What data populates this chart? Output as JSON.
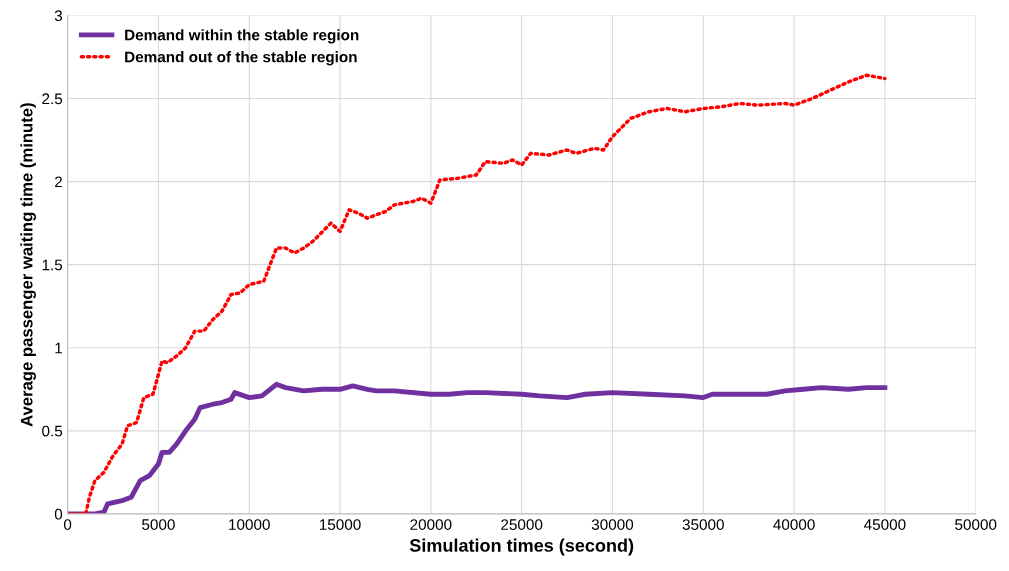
{
  "chart_data": {
    "type": "line",
    "xlabel": "Simulation times (second)",
    "ylabel": "Average passenger waiting time (minute)",
    "xlim": [
      0,
      50000
    ],
    "xticks": [
      0,
      5000,
      10000,
      15000,
      20000,
      25000,
      30000,
      35000,
      40000,
      45000,
      50000
    ],
    "ylim": [
      0,
      3
    ],
    "yticks": [
      0,
      0.5,
      1,
      1.5,
      2,
      2.5,
      3
    ],
    "grid": true,
    "legend": "top left",
    "marker": "none",
    "series": [
      {
        "name": "Demand within the stable region",
        "color": "#7030a0",
        "line_style": "solid",
        "x": [
          0,
          1500,
          2000,
          2200,
          3000,
          3500,
          4000,
          4500,
          5000,
          5200,
          5600,
          6000,
          6500,
          7000,
          7300,
          8000,
          8500,
          9000,
          9200,
          10000,
          10700,
          11500,
          12000,
          13000,
          14000,
          15000,
          15700,
          16500,
          17000,
          18000,
          20000,
          21000,
          22000,
          23000,
          25000,
          26000,
          27500,
          28500,
          30000,
          32000,
          34000,
          35000,
          35500,
          37000,
          38500,
          39500,
          40500,
          41500,
          43000,
          44000,
          45000
        ],
        "values": [
          0,
          0,
          0.01,
          0.06,
          0.08,
          0.1,
          0.2,
          0.23,
          0.3,
          0.37,
          0.37,
          0.42,
          0.5,
          0.57,
          0.64,
          0.66,
          0.67,
          0.69,
          0.73,
          0.7,
          0.71,
          0.78,
          0.76,
          0.74,
          0.75,
          0.75,
          0.77,
          0.75,
          0.74,
          0.74,
          0.72,
          0.72,
          0.73,
          0.73,
          0.72,
          0.71,
          0.7,
          0.72,
          0.73,
          0.72,
          0.71,
          0.7,
          0.72,
          0.72,
          0.72,
          0.74,
          0.75,
          0.76,
          0.75,
          0.76,
          0.76
        ]
      },
      {
        "name": "Demand out of the stable region",
        "color": "#ff0000",
        "line_style": "dotted",
        "x": [
          0,
          1000,
          1200,
          1500,
          2000,
          2500,
          3000,
          3300,
          3800,
          4200,
          4700,
          5200,
          5500,
          6000,
          6500,
          7000,
          7500,
          8000,
          8500,
          9000,
          9500,
          10000,
          10800,
          11500,
          12000,
          12500,
          13000,
          13500,
          14500,
          15000,
          15500,
          16000,
          16500,
          17500,
          18000,
          19000,
          19500,
          20000,
          20500,
          21500,
          22500,
          23000,
          24000,
          24500,
          25000,
          25500,
          26500,
          27500,
          28000,
          29000,
          29500,
          30000,
          31000,
          32000,
          33000,
          34000,
          35000,
          36000,
          37000,
          38000,
          39500,
          40000,
          41000,
          42000,
          43000,
          44000,
          45000
        ],
        "values": [
          0,
          0,
          0.1,
          0.2,
          0.25,
          0.35,
          0.42,
          0.53,
          0.55,
          0.7,
          0.72,
          0.92,
          0.91,
          0.95,
          1.0,
          1.1,
          1.1,
          1.17,
          1.22,
          1.32,
          1.33,
          1.38,
          1.4,
          1.6,
          1.6,
          1.57,
          1.6,
          1.64,
          1.75,
          1.7,
          1.83,
          1.81,
          1.78,
          1.82,
          1.86,
          1.88,
          1.9,
          1.87,
          2.01,
          2.02,
          2.04,
          2.12,
          2.11,
          2.13,
          2.1,
          2.17,
          2.16,
          2.19,
          2.17,
          2.2,
          2.19,
          2.27,
          2.38,
          2.42,
          2.44,
          2.42,
          2.44,
          2.45,
          2.47,
          2.46,
          2.47,
          2.46,
          2.5,
          2.55,
          2.6,
          2.64,
          2.62
        ]
      }
    ]
  }
}
